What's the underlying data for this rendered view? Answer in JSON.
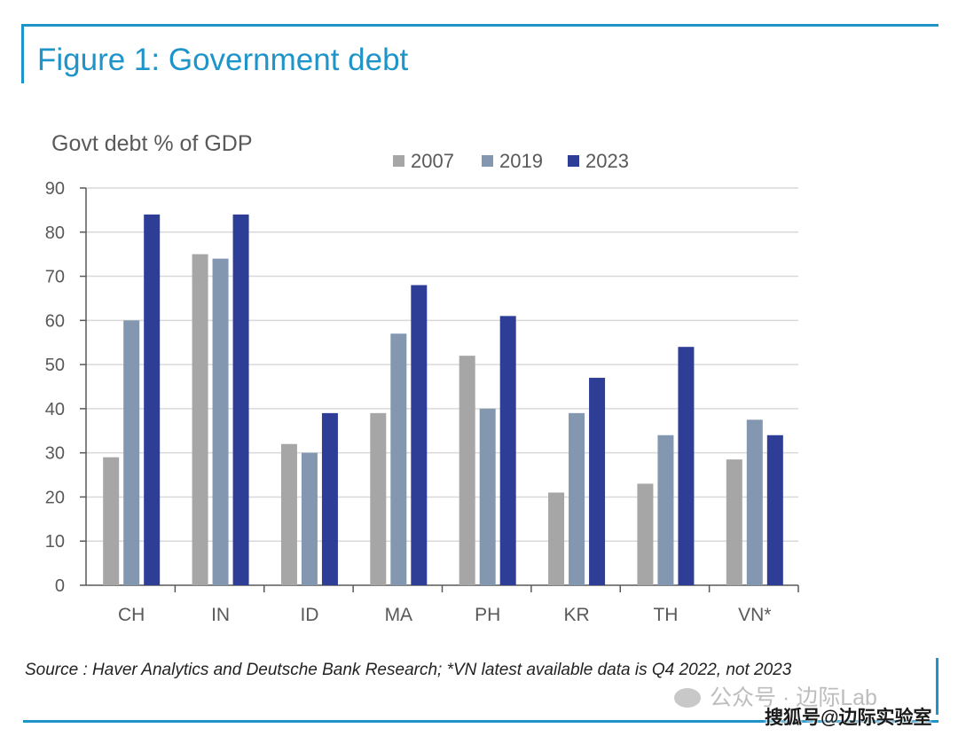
{
  "figure_title": "Figure 1: Government debt",
  "source_note": "Source : Haver Analytics and Deutsche Bank Research; *VN latest available data is Q4 2022, not 2023",
  "watermark": {
    "line1": "公众号 · 边际Lab",
    "line2": "搜狐号@边际实验室"
  },
  "colors": {
    "accent": "#1e94c9",
    "series": [
      "#a6a6a6",
      "#8497b0",
      "#2e3d96"
    ],
    "grid": "#d9d9d9",
    "axis": "#595959",
    "text": "#595959"
  },
  "chart_data": {
    "type": "bar",
    "ylabel": "Govt debt % of GDP",
    "categories": [
      "CH",
      "IN",
      "ID",
      "MA",
      "PH",
      "KR",
      "TH",
      "VN*"
    ],
    "series": [
      {
        "name": "2007",
        "values": [
          29,
          75,
          32,
          39,
          52,
          21,
          23,
          28.5
        ]
      },
      {
        "name": "2019",
        "values": [
          60,
          74,
          30,
          57,
          40,
          39,
          34,
          37.5
        ]
      },
      {
        "name": "2023",
        "values": [
          84,
          84,
          39,
          68,
          61,
          47,
          54,
          34
        ]
      }
    ],
    "ylim": [
      0,
      90
    ],
    "yticks": [
      0,
      10,
      20,
      30,
      40,
      50,
      60,
      70,
      80,
      90
    ],
    "grid": true,
    "legend_position": "top"
  }
}
